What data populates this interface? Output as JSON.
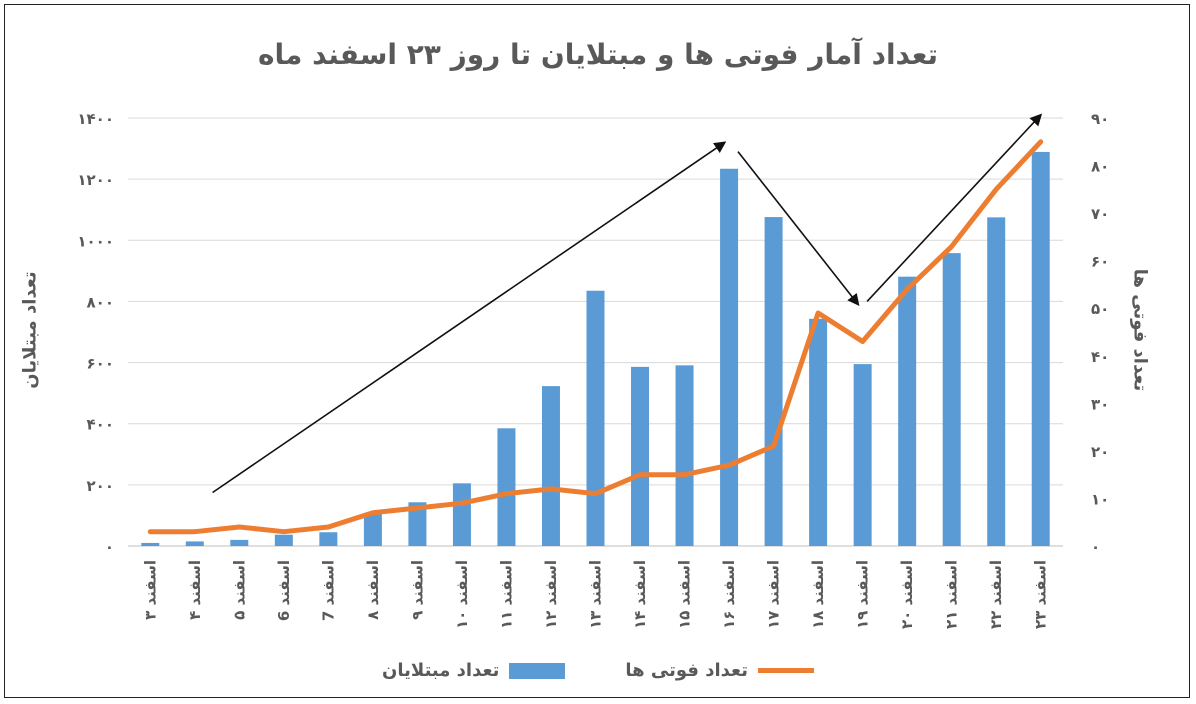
{
  "chart_data": {
    "type": "bar+line",
    "title": "تعداد آمار فوتی ها و مبتلایان تا روز ۲۳ اسفند ماه",
    "ylabel_left": "تعداد مبتلایان",
    "ylabel_right": "تعداد فوتی ها",
    "categories": [
      "۳ اسفند",
      "۴ اسفند",
      "۵ اسفند",
      "6 اسفند",
      "7 اسفند",
      "۸ اسفند",
      "۹ اسفند",
      "۱۰ اسفند",
      "۱۱ اسفند",
      "۱۲ اسفند",
      "۱۳ اسفند",
      "۱۴ اسفند",
      "۱۵ اسفند",
      "۱۶ اسفند",
      "۱۷ اسفند",
      "۱۸ اسفند",
      "۱۹ اسفند",
      "۲۰ اسفند",
      "۲۱ اسفند",
      "۲۲ اسفند",
      "۲۳ اسفند"
    ],
    "left_axis": {
      "ylim": [
        0,
        1400
      ],
      "ticks": [
        0,
        200,
        400,
        600,
        800,
        1000,
        1200,
        1400
      ],
      "tick_labels": [
        "۰",
        "۲۰۰",
        "۴۰۰",
        "۶۰۰",
        "۸۰۰",
        "۱۰۰۰",
        "۱۲۰۰",
        "۱۴۰۰"
      ]
    },
    "right_axis": {
      "ylim": [
        0,
        90
      ],
      "ticks": [
        0,
        10,
        20,
        30,
        40,
        50,
        60,
        70,
        80,
        90
      ],
      "tick_labels": [
        "۰",
        "۱۰",
        "۲۰",
        "۳۰",
        "۴۰",
        "۵۰",
        "۶۰",
        "۷۰",
        "۸۰",
        "۹۰"
      ]
    },
    "series": [
      {
        "name": "تعداد مبتلایان",
        "type": "bar",
        "axis": "left",
        "color": "#5b9bd5",
        "values": [
          10,
          15,
          20,
          37,
          45,
          108,
          143,
          205,
          385,
          523,
          835,
          586,
          591,
          1234,
          1076,
          743,
          595,
          881,
          958,
          1075,
          1289
        ]
      },
      {
        "name": "تعداد فوتی ها",
        "type": "line",
        "axis": "right",
        "color": "#ed7d31",
        "values": [
          3,
          3,
          4,
          3,
          4,
          7,
          8,
          9,
          11,
          12,
          11,
          15,
          15,
          17,
          21,
          49,
          43,
          54,
          63,
          75,
          85
        ]
      }
    ],
    "grid": true,
    "legend_position": "bottom"
  }
}
